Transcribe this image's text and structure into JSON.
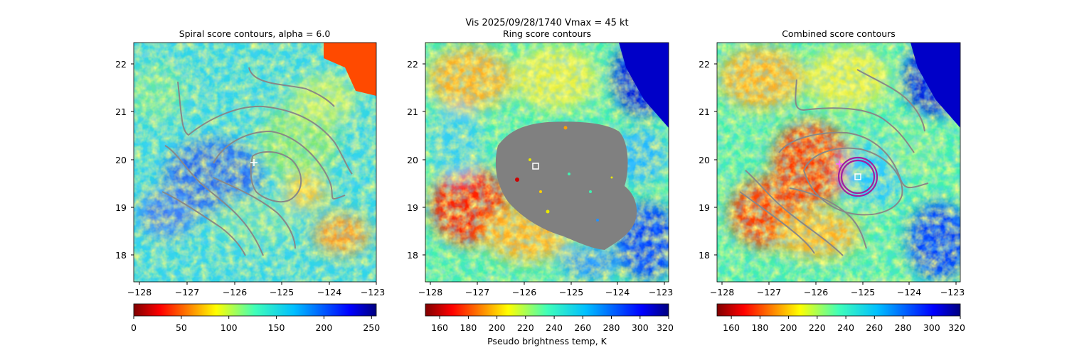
{
  "figure": {
    "suptitle_line1": "Vis  2025/09/28/1740    Vmax = 45 kt"
  },
  "chart_data": [
    {
      "type": "heatmap",
      "title": "Spiral score contours, alpha =  6.0",
      "xlim": [
        -128.1,
        -123.0
      ],
      "ylim": [
        17.4,
        22.4
      ],
      "xticks": [
        "−128",
        "−127",
        "−126",
        "−125",
        "−124",
        "−123"
      ],
      "yticks": [
        "18",
        "19",
        "20",
        "21",
        "22"
      ],
      "colorbar": {
        "ticks": [
          "0",
          "50",
          "100",
          "150",
          "200",
          "250"
        ],
        "range": [
          0,
          255
        ],
        "colormap": "jet_r",
        "label": ""
      },
      "grey_region": false,
      "markers": [
        {
          "kind": "plus",
          "lon": -125.6,
          "lat": 19.93,
          "color": "#ffffff"
        }
      ]
    },
    {
      "type": "heatmap",
      "title": "Ring score contours",
      "xlim": [
        -128.1,
        -123.0
      ],
      "ylim": [
        17.4,
        22.4
      ],
      "xticks": [
        "−128",
        "−127",
        "−126",
        "−125",
        "−124",
        "−123"
      ],
      "yticks": [
        "18",
        "19",
        "20",
        "21",
        "22"
      ],
      "colorbar": {
        "ticks": [
          "160",
          "180",
          "200",
          "220",
          "240",
          "260",
          "280",
          "300",
          "320"
        ],
        "range": [
          150,
          320
        ],
        "colormap": "jet_r",
        "label": "Pseudo brightness temp, K"
      },
      "grey_region": true,
      "markers": [
        {
          "kind": "square",
          "lon": -125.7,
          "lat": 19.85,
          "color": "#ffffff"
        }
      ]
    },
    {
      "type": "heatmap",
      "title": "Combined score contours",
      "xlim": [
        -128.1,
        -123.0
      ],
      "ylim": [
        17.4,
        22.4
      ],
      "xticks": [
        "−128",
        "−127",
        "−126",
        "−125",
        "−124",
        "−123"
      ],
      "yticks": [
        "18",
        "19",
        "20",
        "21",
        "22"
      ],
      "colorbar": {
        "ticks": [
          "160",
          "180",
          "200",
          "220",
          "240",
          "260",
          "280",
          "300",
          "320"
        ],
        "range": [
          150,
          320
        ],
        "colormap": "jet_r",
        "label": ""
      },
      "grey_region": false,
      "markers": [
        {
          "kind": "plus",
          "lon": -125.45,
          "lat": 19.9,
          "color": "#ff66ff"
        },
        {
          "kind": "square",
          "lon": -125.0,
          "lat": 19.65,
          "color": "#ffffff"
        },
        {
          "kind": "circle",
          "lon": -125.0,
          "lat": 19.65,
          "radius_deg": 0.38,
          "color": "#a020a0"
        },
        {
          "kind": "circle",
          "lon": -125.0,
          "lat": 19.65,
          "radius_deg": 0.32,
          "color": "#a020a0"
        }
      ]
    }
  ]
}
